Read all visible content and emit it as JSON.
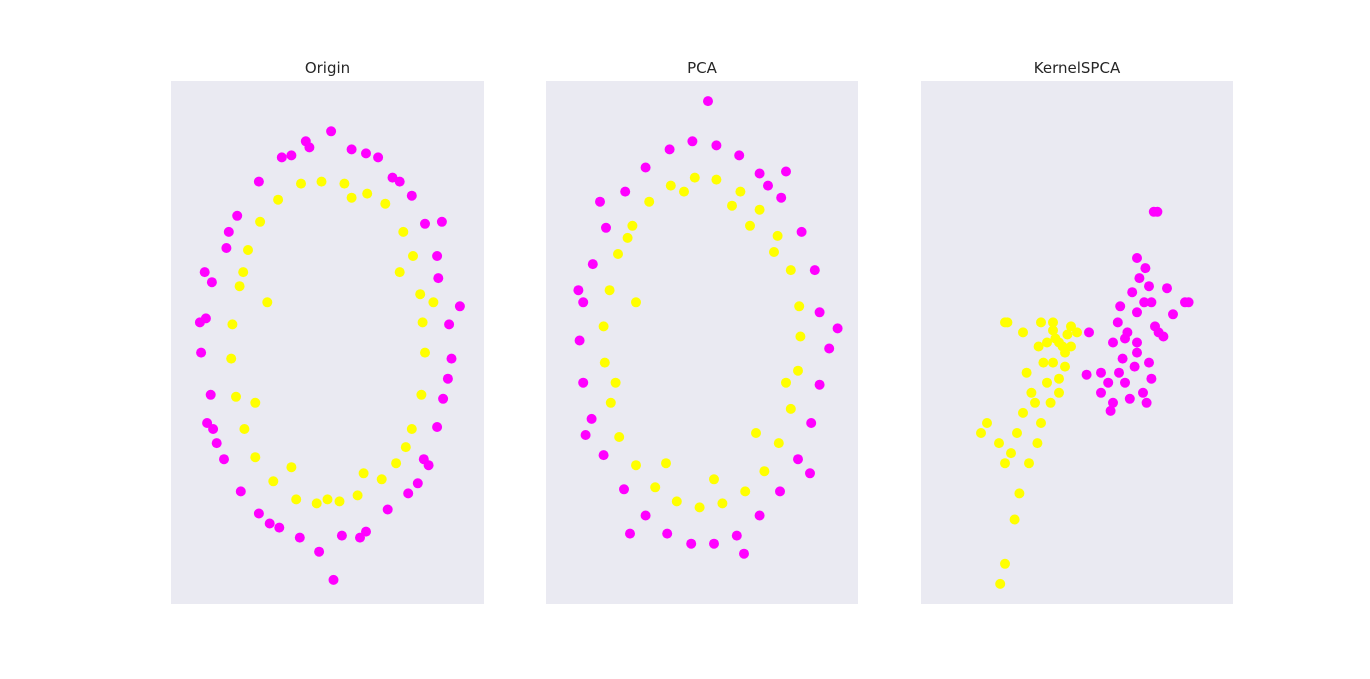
{
  "colors": {
    "outer_ring": "#ff00ff",
    "inner_ring": "#ffff00",
    "plot_background": "#eaeaf2",
    "figure_background": "#ffffff"
  },
  "chart_data": [
    {
      "type": "scatter",
      "title": "Origin",
      "xlabel": "",
      "ylabel": "",
      "xlim": [
        -1.3,
        1.3
      ],
      "ylim": [
        -1.3,
        1.3
      ],
      "grid": false,
      "legend": "none",
      "series": [
        {
          "color": "#ff00ff",
          "points": [
            [
              0.92,
              0.32
            ],
            [
              0.91,
              0.43
            ],
            [
              0.81,
              0.59
            ],
            [
              0.7,
              0.73
            ],
            [
              0.54,
              0.82
            ],
            [
              0.32,
              0.94
            ],
            [
              0.2,
              0.96
            ],
            [
              0.03,
              1.05
            ],
            [
              -0.15,
              0.97
            ],
            [
              -0.38,
              0.92
            ],
            [
              -0.57,
              0.8
            ],
            [
              -0.75,
              0.63
            ],
            [
              -0.84,
              0.47
            ],
            [
              -0.96,
              0.3
            ],
            [
              -1.01,
              0.12
            ],
            [
              -1.05,
              -0.05
            ],
            [
              -0.97,
              -0.26
            ],
            [
              -0.95,
              -0.43
            ],
            [
              -0.86,
              -0.58
            ],
            [
              -0.72,
              -0.74
            ],
            [
              -0.57,
              -0.85
            ],
            [
              -0.4,
              -0.92
            ],
            [
              -0.23,
              -0.97
            ],
            [
              -0.07,
              -1.04
            ],
            [
              0.12,
              -0.96
            ],
            [
              0.32,
              -0.94
            ],
            [
              0.5,
              -0.83
            ],
            [
              0.67,
              -0.75
            ],
            [
              0.8,
              -0.58
            ],
            [
              0.91,
              -0.42
            ],
            [
              0.96,
              -0.28
            ],
            [
              1.03,
              -0.08
            ],
            [
              1.01,
              0.09
            ],
            [
              1.1,
              0.18
            ],
            [
              0.95,
              0.6
            ],
            [
              0.42,
              0.92
            ],
            [
              -0.3,
              0.93
            ],
            [
              -0.82,
              0.55
            ],
            [
              -1.06,
              0.1
            ],
            [
              -1.0,
              -0.4
            ],
            [
              -0.48,
              -0.9
            ],
            [
              0.27,
              -0.97
            ],
            [
              0.84,
              -0.61
            ],
            [
              1.0,
              -0.18
            ],
            [
              0.05,
              -1.18
            ],
            [
              -0.18,
              1.0
            ],
            [
              0.6,
              0.8
            ],
            [
              -0.92,
              -0.5
            ],
            [
              0.75,
              -0.7
            ],
            [
              -1.02,
              0.35
            ]
          ]
        },
        {
          "color": "#ffff00",
          "points": [
            [
              0.77,
              0.24
            ],
            [
              0.71,
              0.43
            ],
            [
              0.63,
              0.55
            ],
            [
              0.48,
              0.69
            ],
            [
              0.33,
              0.74
            ],
            [
              0.14,
              0.79
            ],
            [
              -0.05,
              0.8
            ],
            [
              -0.22,
              0.79
            ],
            [
              -0.41,
              0.71
            ],
            [
              -0.56,
              0.6
            ],
            [
              -0.66,
              0.46
            ],
            [
              -0.73,
              0.28
            ],
            [
              -0.79,
              0.09
            ],
            [
              -0.8,
              -0.08
            ],
            [
              -0.76,
              -0.27
            ],
            [
              -0.69,
              -0.43
            ],
            [
              -0.6,
              -0.57
            ],
            [
              -0.45,
              -0.69
            ],
            [
              -0.26,
              -0.78
            ],
            [
              -0.09,
              -0.8
            ],
            [
              0.1,
              -0.79
            ],
            [
              0.25,
              -0.76
            ],
            [
              0.45,
              -0.68
            ],
            [
              0.57,
              -0.6
            ],
            [
              0.7,
              -0.43
            ],
            [
              0.78,
              -0.26
            ],
            [
              0.81,
              -0.05
            ],
            [
              0.79,
              0.1
            ],
            [
              0.88,
              0.2
            ],
            [
              0.6,
              0.35
            ],
            [
              -0.5,
              0.2
            ],
            [
              -0.3,
              -0.62
            ],
            [
              0.3,
              -0.65
            ],
            [
              0.0,
              -0.78
            ],
            [
              0.65,
              -0.52
            ],
            [
              -0.7,
              0.35
            ],
            [
              0.2,
              0.72
            ],
            [
              -0.6,
              -0.3
            ]
          ]
        }
      ]
    },
    {
      "type": "scatter",
      "title": "PCA",
      "xlabel": "",
      "ylabel": "",
      "xlim": [
        -1.3,
        1.3
      ],
      "ylim": [
        -1.3,
        1.3
      ],
      "grid": false,
      "legend": "none",
      "series": [
        {
          "color": "#ff00ff",
          "points": [
            [
              0.98,
              0.15
            ],
            [
              0.94,
              0.36
            ],
            [
              0.83,
              0.55
            ],
            [
              0.66,
              0.72
            ],
            [
              0.48,
              0.84
            ],
            [
              0.31,
              0.93
            ],
            [
              0.12,
              0.98
            ],
            [
              -0.08,
              1.0
            ],
            [
              -0.27,
              0.96
            ],
            [
              -0.47,
              0.87
            ],
            [
              -0.64,
              0.75
            ],
            [
              -0.8,
              0.57
            ],
            [
              -0.91,
              0.39
            ],
            [
              -0.99,
              0.2
            ],
            [
              -1.02,
              0.01
            ],
            [
              -0.99,
              -0.2
            ],
            [
              -0.92,
              -0.38
            ],
            [
              -0.82,
              -0.56
            ],
            [
              -0.65,
              -0.73
            ],
            [
              -0.47,
              -0.86
            ],
            [
              -0.29,
              -0.95
            ],
            [
              -0.09,
              -1.0
            ],
            [
              0.1,
              -1.0
            ],
            [
              0.29,
              -0.96
            ],
            [
              0.48,
              -0.86
            ],
            [
              0.65,
              -0.74
            ],
            [
              0.8,
              -0.58
            ],
            [
              0.91,
              -0.4
            ],
            [
              0.98,
              -0.21
            ],
            [
              1.06,
              -0.03
            ],
            [
              1.13,
              0.07
            ],
            [
              0.9,
              -0.65
            ],
            [
              0.05,
              1.2
            ],
            [
              -0.85,
              0.7
            ],
            [
              0.7,
              0.85
            ],
            [
              -0.97,
              -0.46
            ],
            [
              0.35,
              -1.05
            ],
            [
              -0.6,
              -0.95
            ],
            [
              0.55,
              0.78
            ],
            [
              -1.03,
              0.26
            ]
          ]
        },
        {
          "color": "#ffff00",
          "points": [
            [
              0.81,
              0.18
            ],
            [
              0.74,
              0.36
            ],
            [
              0.63,
              0.53
            ],
            [
              0.48,
              0.66
            ],
            [
              0.32,
              0.75
            ],
            [
              0.12,
              0.81
            ],
            [
              -0.06,
              0.82
            ],
            [
              -0.26,
              0.78
            ],
            [
              -0.44,
              0.7
            ],
            [
              -0.58,
              0.58
            ],
            [
              -0.7,
              0.44
            ],
            [
              -0.77,
              0.26
            ],
            [
              -0.82,
              0.08
            ],
            [
              -0.81,
              -0.1
            ],
            [
              -0.76,
              -0.3
            ],
            [
              -0.69,
              -0.47
            ],
            [
              -0.55,
              -0.61
            ],
            [
              -0.39,
              -0.72
            ],
            [
              -0.21,
              -0.79
            ],
            [
              -0.02,
              -0.82
            ],
            [
              0.17,
              -0.8
            ],
            [
              0.36,
              -0.74
            ],
            [
              0.52,
              -0.64
            ],
            [
              0.64,
              -0.5
            ],
            [
              0.74,
              -0.33
            ],
            [
              0.8,
              -0.14
            ],
            [
              0.82,
              0.03
            ],
            [
              -0.55,
              0.2
            ],
            [
              0.45,
              -0.45
            ],
            [
              0.6,
              0.45
            ],
            [
              -0.3,
              -0.6
            ],
            [
              0.1,
              -0.68
            ],
            [
              -0.72,
              -0.2
            ],
            [
              0.25,
              0.68
            ],
            [
              0.7,
              -0.2
            ],
            [
              -0.62,
              0.52
            ],
            [
              0.4,
              0.58
            ],
            [
              -0.15,
              0.75
            ]
          ]
        }
      ]
    },
    {
      "type": "scatter",
      "title": "KernelSPCA",
      "xlabel": "",
      "ylabel": "",
      "xlim": [
        -1.3,
        1.3
      ],
      "ylim": [
        -1.3,
        1.3
      ],
      "grid": false,
      "legend": "none",
      "series": [
        {
          "color": "#ff00ff",
          "points": [
            [
              0.64,
              0.65
            ],
            [
              0.67,
              0.65
            ],
            [
              0.5,
              0.42
            ],
            [
              0.57,
              0.37
            ],
            [
              0.6,
              0.28
            ],
            [
              0.75,
              0.27
            ],
            [
              0.9,
              0.2
            ],
            [
              0.93,
              0.2
            ],
            [
              0.8,
              0.14
            ],
            [
              0.5,
              0.15
            ],
            [
              0.65,
              0.08
            ],
            [
              0.4,
              0.02
            ],
            [
              0.5,
              -0.05
            ],
            [
              0.68,
              0.05
            ],
            [
              0.6,
              -0.1
            ],
            [
              0.35,
              -0.15
            ],
            [
              0.2,
              -0.15
            ],
            [
              0.4,
              -0.2
            ],
            [
              0.55,
              -0.25
            ],
            [
              0.3,
              -0.3
            ],
            [
              0.2,
              -0.25
            ],
            [
              0.5,
              0.0
            ],
            [
              0.38,
              -0.08
            ],
            [
              0.42,
              0.05
            ],
            [
              0.48,
              -0.12
            ],
            [
              0.34,
              0.1
            ],
            [
              0.56,
              0.2
            ],
            [
              0.62,
              -0.18
            ],
            [
              0.3,
              0.0
            ],
            [
              0.44,
              -0.28
            ],
            [
              0.52,
              0.32
            ],
            [
              0.36,
              0.18
            ],
            [
              0.58,
              -0.3
            ],
            [
              0.26,
              -0.2
            ],
            [
              0.46,
              0.25
            ],
            [
              0.1,
              0.05
            ],
            [
              0.08,
              -0.16
            ],
            [
              0.28,
              -0.34
            ],
            [
              0.72,
              0.03
            ],
            [
              0.62,
              0.2
            ]
          ]
        },
        {
          "color": "#ffff00",
          "points": [
            [
              -0.6,
              0.1
            ],
            [
              -0.58,
              0.1
            ],
            [
              -0.45,
              0.05
            ],
            [
              -0.3,
              0.1
            ],
            [
              -0.2,
              0.06
            ],
            [
              -0.15,
              0.0
            ],
            [
              -0.05,
              0.08
            ],
            [
              0.0,
              0.05
            ],
            [
              -0.1,
              -0.05
            ],
            [
              -0.2,
              -0.1
            ],
            [
              -0.25,
              -0.2
            ],
            [
              -0.38,
              -0.25
            ],
            [
              -0.45,
              -0.35
            ],
            [
              -0.5,
              -0.45
            ],
            [
              -0.55,
              -0.55
            ],
            [
              -0.6,
              -0.6
            ],
            [
              -0.65,
              -0.5
            ],
            [
              -0.75,
              -0.4
            ],
            [
              -0.8,
              -0.45
            ],
            [
              -0.48,
              -0.75
            ],
            [
              -0.52,
              -0.88
            ],
            [
              -0.6,
              -1.1
            ],
            [
              -0.64,
              -1.2
            ],
            [
              -0.4,
              -0.6
            ],
            [
              -0.3,
              -0.4
            ],
            [
              -0.22,
              -0.3
            ],
            [
              -0.18,
              0.02
            ],
            [
              -0.12,
              -0.02
            ],
            [
              -0.08,
              0.04
            ],
            [
              -0.1,
              -0.12
            ],
            [
              -0.15,
              -0.18
            ],
            [
              -0.32,
              -0.02
            ],
            [
              -0.25,
              0.0
            ],
            [
              -0.28,
              -0.1
            ],
            [
              -0.05,
              -0.02
            ],
            [
              -0.35,
              -0.3
            ],
            [
              -0.42,
              -0.15
            ],
            [
              -0.33,
              -0.5
            ],
            [
              -0.2,
              0.1
            ],
            [
              -0.15,
              -0.25
            ]
          ]
        }
      ]
    }
  ]
}
